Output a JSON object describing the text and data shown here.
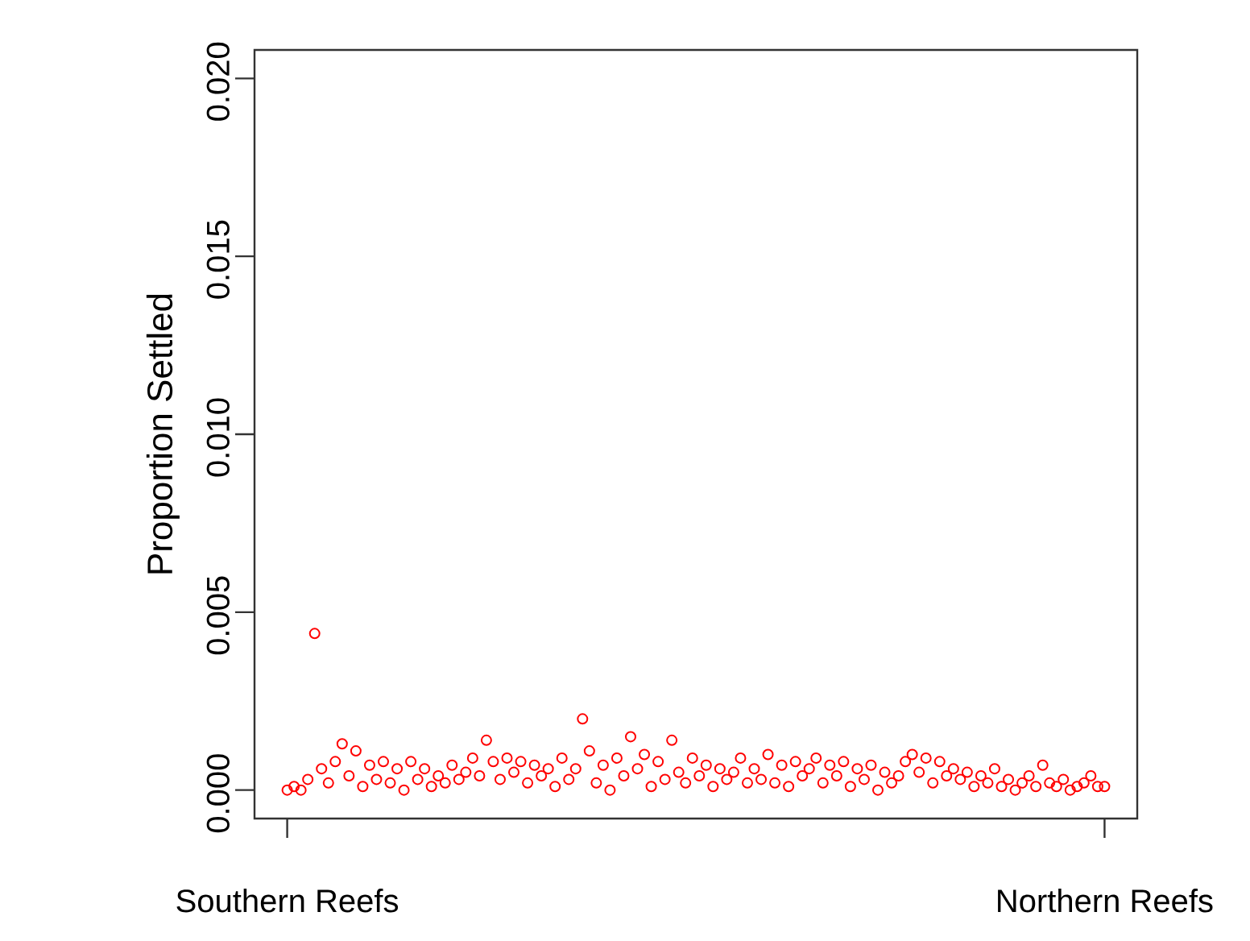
{
  "chart_data": {
    "type": "scatter",
    "ylabel": "Proportion Settled",
    "categories": [
      "Southern Reefs",
      null,
      null,
      null,
      null,
      null,
      null,
      null,
      null,
      null,
      null,
      null,
      null,
      null,
      null,
      null,
      null,
      null,
      null,
      null,
      null,
      null,
      null,
      null,
      null,
      null,
      null,
      null,
      null,
      null,
      null,
      null,
      null,
      null,
      null,
      null,
      null,
      null,
      null,
      null,
      null,
      null,
      null,
      null,
      null,
      null,
      null,
      null,
      null,
      null,
      null,
      null,
      null,
      null,
      null,
      null,
      null,
      null,
      null,
      null,
      null,
      null,
      null,
      null,
      null,
      null,
      null,
      null,
      null,
      null,
      null,
      null,
      null,
      null,
      null,
      null,
      null,
      null,
      null,
      null,
      null,
      null,
      null,
      null,
      null,
      null,
      null,
      null,
      null,
      null,
      null,
      null,
      null,
      null,
      null,
      null,
      null,
      null,
      null,
      null,
      null,
      null,
      null,
      null,
      null,
      null,
      null,
      null,
      null,
      null,
      null,
      null,
      null,
      null,
      null,
      null,
      null,
      null,
      null,
      "Northern Reefs"
    ],
    "values": [
      0.0,
      0.0001,
      0.0,
      0.0003,
      0.0044,
      0.0006,
      0.0002,
      0.0008,
      0.0013,
      0.0004,
      0.0011,
      0.0001,
      0.0007,
      0.0003,
      0.0008,
      0.0002,
      0.0006,
      0.0,
      0.0008,
      0.0003,
      0.0006,
      0.0001,
      0.0004,
      0.0002,
      0.0007,
      0.0003,
      0.0005,
      0.0009,
      0.0004,
      0.0014,
      0.0008,
      0.0003,
      0.0009,
      0.0005,
      0.0008,
      0.0002,
      0.0007,
      0.0004,
      0.0006,
      0.0001,
      0.0009,
      0.0003,
      0.0006,
      0.002,
      0.0011,
      0.0002,
      0.0007,
      0.0,
      0.0009,
      0.0004,
      0.0015,
      0.0006,
      0.001,
      0.0001,
      0.0008,
      0.0003,
      0.0014,
      0.0005,
      0.0002,
      0.0009,
      0.0004,
      0.0007,
      0.0001,
      0.0006,
      0.0003,
      0.0005,
      0.0009,
      0.0002,
      0.0006,
      0.0003,
      0.001,
      0.0002,
      0.0007,
      0.0001,
      0.0008,
      0.0004,
      0.0006,
      0.0009,
      0.0002,
      0.0007,
      0.0004,
      0.0008,
      0.0001,
      0.0006,
      0.0003,
      0.0007,
      0.0,
      0.0005,
      0.0002,
      0.0004,
      0.0008,
      0.001,
      0.0005,
      0.0009,
      0.0002,
      0.0008,
      0.0004,
      0.0006,
      0.0003,
      0.0005,
      0.0001,
      0.0004,
      0.0002,
      0.0006,
      0.0001,
      0.0003,
      0.0,
      0.0002,
      0.0004,
      0.0001,
      0.0007,
      0.0002,
      0.0001,
      0.0003,
      0.0,
      0.0001,
      0.0002,
      0.0004,
      0.0001,
      0.0001
    ],
    "color": "#ff0000",
    "marker": "circle",
    "ylim": [
      -0.0008,
      0.0208
    ],
    "yticks": [
      {
        "value": 0,
        "label": "0.000"
      },
      {
        "value": 0.005,
        "label": "0.005"
      },
      {
        "value": 0.01,
        "label": "0.010"
      },
      {
        "value": 0.015,
        "label": "0.015"
      },
      {
        "value": 0.02,
        "label": "0.020"
      }
    ]
  }
}
